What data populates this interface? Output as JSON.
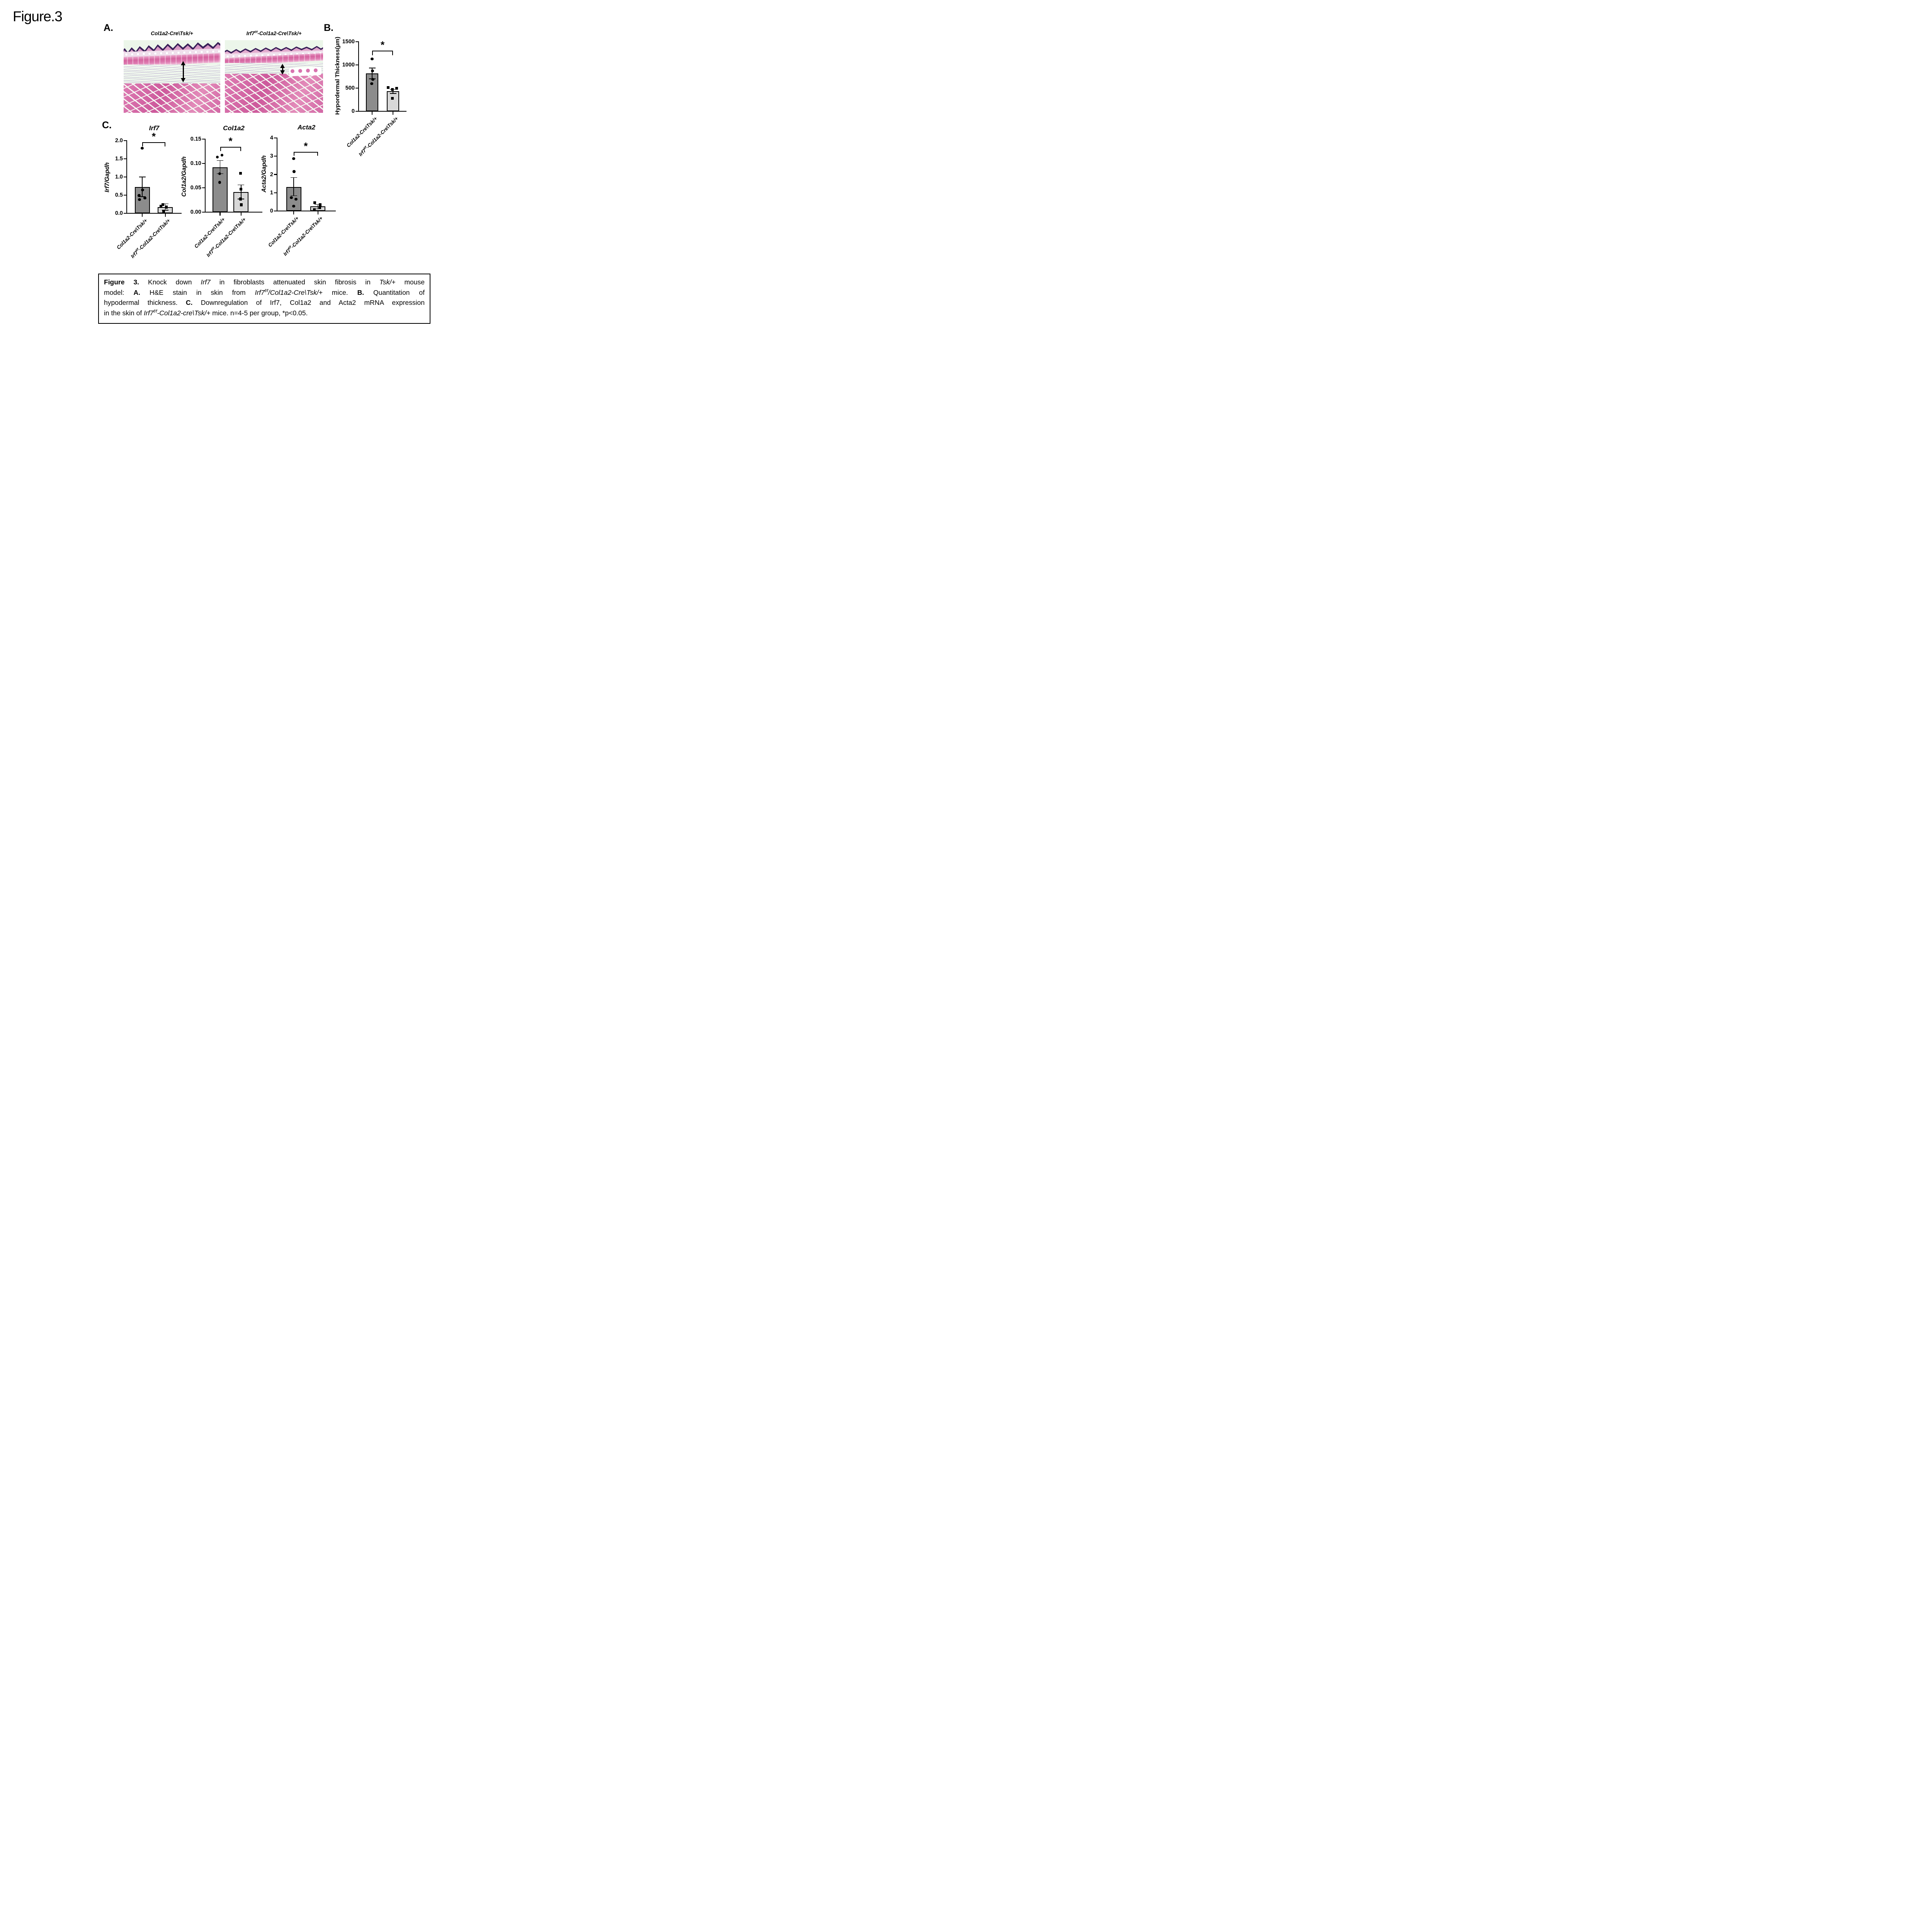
{
  "figure_label": "Figure.3",
  "colors": {
    "bar_dark": "#8c8c8c",
    "bar_light": "#d8d8d8",
    "axis": "#000000",
    "histo_background": "#ecf6ea",
    "histo_pink": "#d5639f",
    "histo_purple": "#392058"
  },
  "panel_a": {
    "label": "A.",
    "image_labels": [
      [
        {
          "t": "Col1a2-Cre\\Tsk/+",
          "i": true
        }
      ],
      [
        {
          "t": "Irf7",
          "i": true
        },
        {
          "t": "f/f",
          "i": true,
          "sup": true
        },
        {
          "t": "-Col1a2-Cre\\Tsk/+",
          "i": true
        }
      ]
    ]
  },
  "panel_b": {
    "label": "B."
  },
  "panel_c": {
    "label": "C."
  },
  "chart_data": [
    {
      "id": "hypodermal-thickness",
      "type": "bar",
      "title": "",
      "ylabel": "Hypordermal Thickness(µm)",
      "ylim": [
        0,
        1500
      ],
      "yticks": [
        0,
        500,
        1000,
        1500
      ],
      "ytick_labels": [
        "0",
        "500",
        "1000",
        "1500"
      ],
      "legend": "none",
      "grid": false,
      "sig": {
        "star": "*",
        "bar_y": 1310,
        "drop": 100
      },
      "categories": [
        "Col1a2-Cre\\Tsk/+",
        "Irf7f/f-Col1a2-Cre\\Tsk/+"
      ],
      "bars": [
        {
          "category_runs": [
            {
              "t": "Col1a2-Cre\\Tsk/+",
              "i": true
            }
          ],
          "value": 815,
          "err_hi": 935,
          "err_lo": 700,
          "color": "#8c8c8c",
          "marker": "circle",
          "points": [
            {
              "v": 1130,
              "dx": 0
            },
            {
              "v": 870,
              "dx": 1
            },
            {
              "v": 685,
              "dx": 2
            },
            {
              "v": 595,
              "dx": -1
            }
          ]
        },
        {
          "category_runs": [
            {
              "t": "Irf7",
              "i": true
            },
            {
              "t": "f/f",
              "i": true,
              "sup": true
            },
            {
              "t": "-Col1a2-Cre\\Tsk/+",
              "i": true
            }
          ],
          "value": 430,
          "err_hi": 470,
          "err_lo": 385,
          "color": "#d8d8d8",
          "marker": "square",
          "points": [
            {
              "v": 510,
              "dx": -13
            },
            {
              "v": 497,
              "dx": 9
            },
            {
              "v": 468,
              "dx": -2
            },
            {
              "v": 277,
              "dx": -2
            }
          ]
        }
      ]
    },
    {
      "id": "irf7",
      "type": "bar",
      "title": "Irf7",
      "ylabel": "Irf7/Gapdh",
      "ylim": [
        0,
        2
      ],
      "yticks": [
        0,
        0.5,
        1.0,
        1.5,
        2.0
      ],
      "ytick_labels": [
        "0.0",
        "0.5",
        "1.0",
        "1.5",
        "2.0"
      ],
      "legend": "none",
      "grid": false,
      "sig": {
        "star": "*",
        "bar_y": 1.96,
        "drop": 0.12
      },
      "categories": [
        "Col1a2-Cre\\Tsk/+",
        "Irf7f/f-Col1a2-Cre\\Tsk/+"
      ],
      "bars": [
        {
          "category_runs": [
            {
              "t": "Col1a2-Cre\\Tsk/+",
              "i": true
            }
          ],
          "value": 0.72,
          "err_hi": 1.0,
          "err_lo": 0.46,
          "color": "#8c8c8c",
          "marker": "circle",
          "points": [
            {
              "v": 1.79,
              "dx": 0
            },
            {
              "v": 0.64,
              "dx": 1
            },
            {
              "v": 0.49,
              "dx": -8
            },
            {
              "v": 0.42,
              "dx": 7
            },
            {
              "v": 0.38,
              "dx": -7
            }
          ]
        },
        {
          "category_runs": [
            {
              "t": "Irf7",
              "i": true
            },
            {
              "t": "f/f",
              "i": true,
              "sup": true
            },
            {
              "t": "-Col1a2-Cre\\Tsk/+",
              "i": true
            }
          ],
          "value": 0.17,
          "err_hi": 0.26,
          "err_lo": 0.085,
          "color": "#d8d8d8",
          "marker": "square",
          "points": [
            {
              "v": 0.24,
              "dx": -6
            },
            {
              "v": 0.2,
              "dx": -11
            },
            {
              "v": 0.17,
              "dx": 3
            },
            {
              "v": 0.05,
              "dx": -4
            }
          ]
        }
      ]
    },
    {
      "id": "col1a2",
      "type": "bar",
      "title": "Col1a2",
      "ylabel": "Col1a2/Gapdh",
      "ylim": [
        0,
        0.15
      ],
      "yticks": [
        0,
        0.05,
        0.1,
        0.15
      ],
      "ytick_labels": [
        "0.00",
        "0.05",
        "0.10",
        "0.15"
      ],
      "legend": "none",
      "grid": false,
      "sig": {
        "star": "*",
        "bar_y": 0.1345,
        "drop": 0.009
      },
      "categories": [
        "Col1a2-Cre\\Tsk/+",
        "Irf7f/f-Col1a2-Cre\\Tsk/+"
      ],
      "bars": [
        {
          "category_runs": [
            {
              "t": "Col1a2-Cre\\Tsk/+",
              "i": true
            }
          ],
          "value": 0.092,
          "err_hi": 0.106,
          "err_lo": 0.079,
          "color": "#8c8c8c",
          "marker": "circle",
          "points": [
            {
              "v": 0.113,
              "dx": -7
            },
            {
              "v": 0.117,
              "dx": 5
            },
            {
              "v": 0.079,
              "dx": -1
            },
            {
              "v": 0.061,
              "dx": -1
            }
          ]
        },
        {
          "category_runs": [
            {
              "t": "Irf7",
              "i": true
            },
            {
              "t": "f/f",
              "i": true,
              "sup": true
            },
            {
              "t": "-Col1a2-Cre\\Tsk/+",
              "i": true
            }
          ],
          "value": 0.041,
          "err_hi": 0.056,
          "err_lo": 0.027,
          "color": "#d8d8d8",
          "marker": "square",
          "points": [
            {
              "v": 0.08,
              "dx": -1
            },
            {
              "v": 0.047,
              "dx": 0
            },
            {
              "v": 0.027,
              "dx": -1
            },
            {
              "v": 0.015,
              "dx": 1
            }
          ]
        }
      ]
    },
    {
      "id": "acta2",
      "type": "bar",
      "title": "Acta2",
      "ylabel": "Acta2/Gapdh",
      "ylim": [
        0,
        4
      ],
      "yticks": [
        0,
        1,
        2,
        3,
        4
      ],
      "ytick_labels": [
        "0",
        "1",
        "2",
        "3",
        "4"
      ],
      "legend": "none",
      "grid": false,
      "sig": {
        "star": "*",
        "bar_y": 3.24,
        "drop": 0.21
      },
      "categories": [
        "Col1a2-Cre\\Tsk/+",
        "Irf7f/f-Col1a2-Cre\\Tsk/+"
      ],
      "bars": [
        {
          "category_runs": [
            {
              "t": "Col1a2-Cre\\Tsk/+",
              "i": true
            }
          ],
          "value": 1.32,
          "err_hi": 1.83,
          "err_lo": 0.84,
          "color": "#8c8c8c",
          "marker": "circle",
          "points": [
            {
              "v": 2.87,
              "dx": 0
            },
            {
              "v": 2.16,
              "dx": 1
            },
            {
              "v": 0.73,
              "dx": -6
            },
            {
              "v": 0.64,
              "dx": 6
            },
            {
              "v": 0.27,
              "dx": 0
            }
          ]
        },
        {
          "category_runs": [
            {
              "t": "Irf7",
              "i": true
            },
            {
              "t": "f/f",
              "i": true,
              "sup": true
            },
            {
              "t": "-Col1a2-Cre\\Tsk/+",
              "i": true
            }
          ],
          "value": 0.25,
          "err_hi": 0.35,
          "err_lo": 0.12,
          "color": "#d8d8d8",
          "marker": "square",
          "points": [
            {
              "v": 0.45,
              "dx": -8
            },
            {
              "v": 0.34,
              "dx": 6
            },
            {
              "v": 0.18,
              "dx": 5
            },
            {
              "v": 0.08,
              "dx": -9
            }
          ]
        }
      ]
    }
  ],
  "caption": {
    "lines": [
      [
        {
          "t": "Figure 3.",
          "b": true
        },
        {
          "t": " Knock down "
        },
        {
          "t": "Irf7",
          "i": true
        },
        {
          "t": " in fibroblasts attenuated skin fibrosis in "
        },
        {
          "t": "Tsk/+",
          "i": true
        },
        {
          "t": " mouse"
        }
      ],
      [
        {
          "t": "model: "
        },
        {
          "t": "A.",
          "b": true
        },
        {
          "t": " H&E stain in skin from "
        },
        {
          "t": "Irf7",
          "i": true
        },
        {
          "t": "f/f",
          "i": true,
          "sup": true
        },
        {
          "t": "/Col1a2-Cre\\Tsk/+",
          "i": true
        },
        {
          "t": " mice. "
        },
        {
          "t": "B.",
          "b": true
        },
        {
          "t": " Quantitation of"
        }
      ],
      [
        {
          "t": "hypodermal thickness. "
        },
        {
          "t": "C.",
          "b": true
        },
        {
          "t": " Downregulation of Irf7, Col1a2 and Acta2 mRNA expression"
        }
      ],
      [
        {
          "t": "in the skin of "
        },
        {
          "t": "Irf7",
          "i": true
        },
        {
          "t": "f/f",
          "i": true,
          "sup": true
        },
        {
          "t": "-Col1a2-cre\\Tsk/+",
          "i": true
        },
        {
          "t": " mice. n=4-5 per group, *p<0.05."
        }
      ]
    ]
  }
}
